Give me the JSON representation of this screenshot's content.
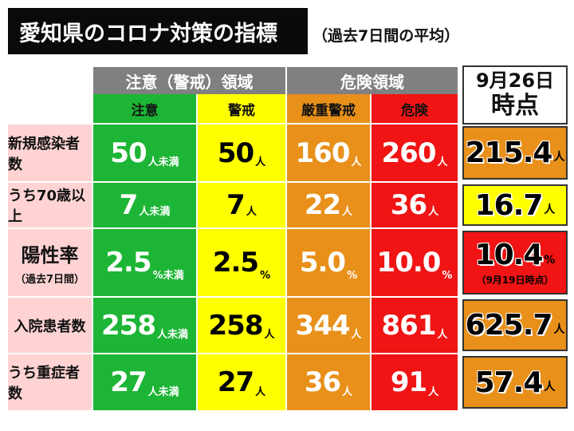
{
  "title": "愛知県のコロナ対策の指標",
  "subtitle": "（過去7日間の平均）",
  "groups": {
    "caution": "注意（警戒）領域",
    "danger": "危険領域"
  },
  "subheaders": [
    "注意",
    "警戒",
    "厳重警戒",
    "危険"
  ],
  "date_header": {
    "line1": "9月26日",
    "line2": "時点"
  },
  "colors": {
    "green": "#1db535",
    "yellow": "#ffff00",
    "orange": "#e8901a",
    "red": "#f01414",
    "pink": "#ffd3d3",
    "gray": "#808080"
  },
  "rows": [
    {
      "label": "新規感染者数",
      "sublabel": "",
      "cells": [
        {
          "value": "50",
          "unit": "人未満"
        },
        {
          "value": "50",
          "unit": "人"
        },
        {
          "value": "160",
          "unit": "人"
        },
        {
          "value": "260",
          "unit": "人"
        }
      ],
      "current": {
        "value": "215.4",
        "unit": "人",
        "note": ""
      },
      "current_level": "orange"
    },
    {
      "label": "うち70歳以上",
      "sublabel": "",
      "cells": [
        {
          "value": "7",
          "unit": "人未満"
        },
        {
          "value": "7",
          "unit": "人"
        },
        {
          "value": "22",
          "unit": "人"
        },
        {
          "value": "36",
          "unit": "人"
        }
      ],
      "current": {
        "value": "16.7",
        "unit": "人",
        "note": ""
      },
      "current_level": "yellow"
    },
    {
      "label": "陽性率",
      "sublabel": "（過去7日間）",
      "cells": [
        {
          "value": "2.5",
          "unit": "%未満"
        },
        {
          "value": "2.5",
          "unit": "%"
        },
        {
          "value": "5.0",
          "unit": "%"
        },
        {
          "value": "10.0",
          "unit": "%"
        }
      ],
      "current": {
        "value": "10.4",
        "unit": "%",
        "note": "（9月19日時点）"
      },
      "current_level": "red"
    },
    {
      "label": "入院患者数",
      "sublabel": "",
      "cells": [
        {
          "value": "258",
          "unit": "人未満"
        },
        {
          "value": "258",
          "unit": "人"
        },
        {
          "value": "344",
          "unit": "人"
        },
        {
          "value": "861",
          "unit": "人"
        }
      ],
      "current": {
        "value": "625.7",
        "unit": "人",
        "note": ""
      },
      "current_level": "orange"
    },
    {
      "label": "うち重症者数",
      "sublabel": "",
      "cells": [
        {
          "value": "27",
          "unit": "人未満"
        },
        {
          "value": "27",
          "unit": "人"
        },
        {
          "value": "36",
          "unit": "人"
        },
        {
          "value": "91",
          "unit": "人"
        }
      ],
      "current": {
        "value": "57.4",
        "unit": "人",
        "note": ""
      },
      "current_level": "orange"
    }
  ]
}
